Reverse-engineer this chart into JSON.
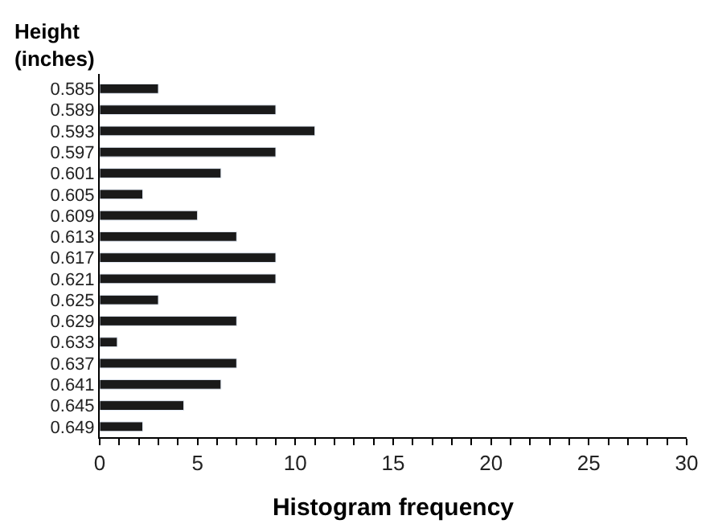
{
  "chart_data": {
    "type": "bar",
    "orientation": "horizontal",
    "xlabel": "Histogram frequency",
    "ylabel": "Height\n(inches)",
    "categories": [
      "0.585",
      "0.589",
      "0.593",
      "0.597",
      "0.601",
      "0.605",
      "0.609",
      "0.613",
      "0.617",
      "0.621",
      "0.625",
      "0.629",
      "0.633",
      "0.637",
      "0.641",
      "0.645",
      "0.649"
    ],
    "values": [
      3,
      9,
      11,
      9,
      6.2,
      2.2,
      5,
      7,
      9,
      9,
      3,
      7,
      0.9,
      7,
      6.2,
      4.3,
      2.2
    ],
    "color": "#1a1a1a",
    "xlim": [
      0,
      30
    ],
    "xticks": [
      0,
      {
        "value": 1,
        "label": null
      },
      {
        "value": 2,
        "label": null
      },
      {
        "value": 3,
        "label": null
      },
      {
        "value": 4,
        "label": null
      },
      5,
      {
        "value": 6,
        "label": null
      },
      {
        "value": 7,
        "label": null
      },
      {
        "value": 8,
        "label": null
      },
      {
        "value": 9,
        "label": null
      },
      10,
      {
        "value": 11,
        "label": null
      },
      {
        "value": 12,
        "label": null
      },
      {
        "value": 13,
        "label": null
      },
      {
        "value": 14,
        "label": null
      },
      15,
      {
        "value": 16,
        "label": null
      },
      {
        "value": 17,
        "label": null
      },
      {
        "value": 18,
        "label": null
      },
      {
        "value": 19,
        "label": null
      },
      20,
      {
        "value": 21,
        "label": null
      },
      {
        "value": 22,
        "label": null
      },
      {
        "value": 23,
        "label": null
      },
      {
        "value": 24,
        "label": null
      },
      25,
      {
        "value": 26,
        "label": null
      },
      {
        "value": 27,
        "label": null
      },
      {
        "value": 28,
        "label": null
      },
      {
        "value": 29,
        "label": null
      },
      30
    ],
    "legend": false
  }
}
